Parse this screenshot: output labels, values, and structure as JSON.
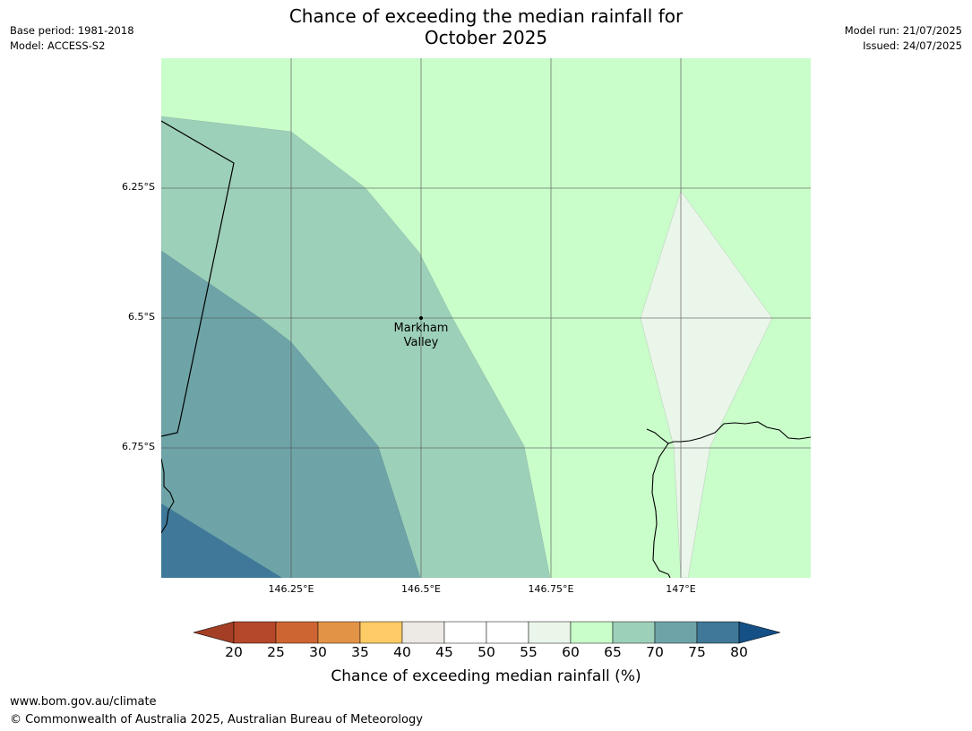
{
  "title_line1": "Chance of exceeding the median rainfall for",
  "title_line2": "October 2025",
  "meta": {
    "base_period": "Base period: 1981-2018",
    "model": "Model: ACCESS-S2",
    "model_run": "Model run: 21/07/2025",
    "issued": "Issued: 24/07/2025"
  },
  "map": {
    "lat_labels": [
      "6.25°S",
      "6.5°S",
      "6.75°S"
    ],
    "lon_labels": [
      "146.25°E",
      "146.5°E",
      "146.75°E",
      "147°E"
    ],
    "place": {
      "name_line1": "Markham",
      "name_line2": "Valley"
    }
  },
  "legend": {
    "ticks": [
      "20",
      "25",
      "30",
      "35",
      "40",
      "45",
      "50",
      "55",
      "60",
      "65",
      "70",
      "75",
      "80"
    ],
    "title": "Chance of exceeding median rainfall (%)",
    "colors": [
      "#a43f25",
      "#b5472a",
      "#cd6532",
      "#e39346",
      "#fecb66",
      "#ede9e4",
      "#ffffff",
      "#ffffff",
      "#eaf6ea",
      "#c9fdca",
      "#9dd0b9",
      "#6ea4a8",
      "#3f7898",
      "#145086"
    ]
  },
  "footer": {
    "url": "www.bom.gov.au/climate",
    "copyright": "© Commonwealth of Australia 2025, Australian Bureau of Meteorology"
  }
}
